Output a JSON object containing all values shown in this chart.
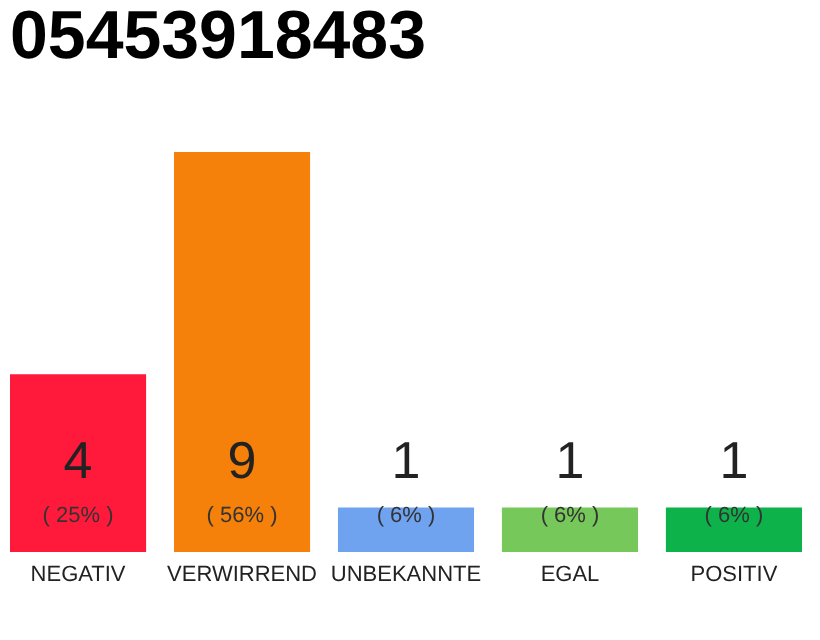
{
  "chart_data": {
    "type": "bar",
    "title": "05453918483",
    "categories": [
      "NEGATIV",
      "VERWIRREND",
      "UNBEKANNTE",
      "EGAL",
      "POSITIV"
    ],
    "values": [
      4,
      9,
      1,
      1,
      1
    ],
    "colors": [
      "#ff1a3c",
      "#f5800a",
      "#6fa3ef",
      "#77c85a",
      "#0db24a"
    ],
    "ylim": [
      0,
      9
    ],
    "data_labels": true,
    "tick_labels": "x",
    "grid": false,
    "annotations": [
      "( 25% )",
      "( 56% )",
      "( 6% )",
      "( 6% )",
      "( 6% )"
    ]
  }
}
